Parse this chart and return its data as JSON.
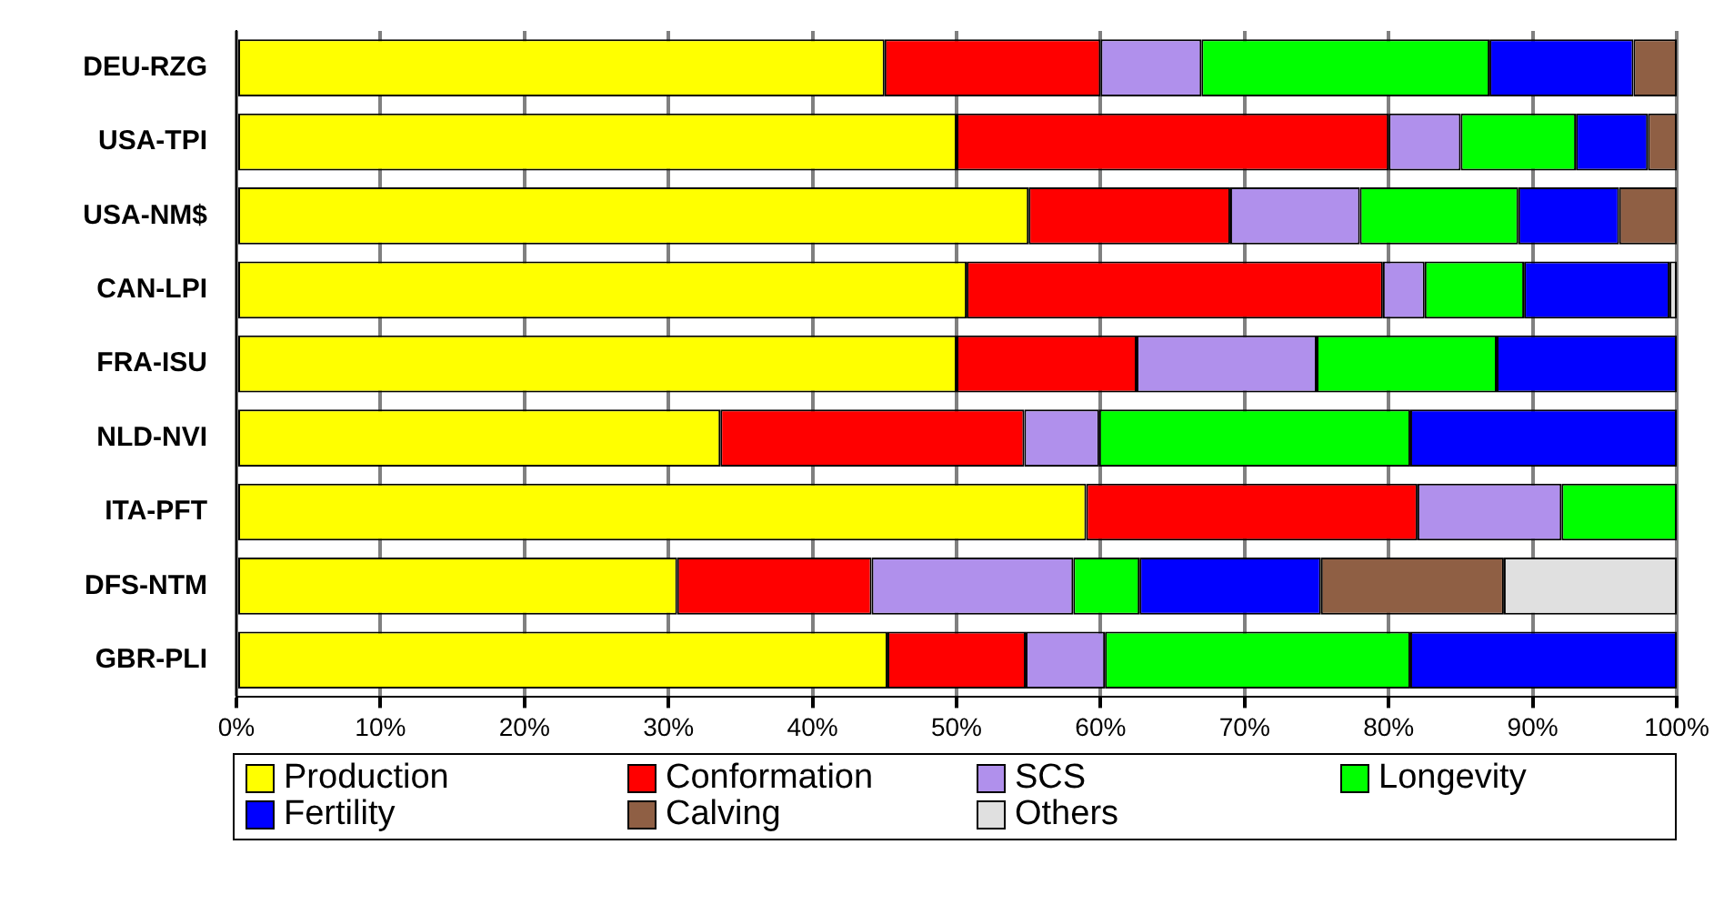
{
  "chart_data": {
    "type": "bar",
    "orientation": "horizontal",
    "stacked": true,
    "categories": [
      "DEU-RZG",
      "USA-TPI",
      "USA-NM$",
      "CAN-LPI",
      "FRA-ISU",
      "NLD-NVI",
      "ITA-PFT",
      "DFS-NTM",
      "GBR-PLI"
    ],
    "series": [
      {
        "name": "Production",
        "color": "#ffff00",
        "values": [
          45,
          50,
          55,
          50.7,
          50,
          33.6,
          59,
          30.6,
          45.2
        ]
      },
      {
        "name": "Conformation",
        "color": "#ff0000",
        "values": [
          15,
          30,
          14,
          28.9,
          12.5,
          21.1,
          23,
          13.5,
          9.6
        ]
      },
      {
        "name": "SCS",
        "color": "#b090ec",
        "values": [
          7,
          5,
          9,
          2.9,
          12.5,
          5.2,
          10,
          14,
          5.5
        ]
      },
      {
        "name": "Longevity",
        "color": "#00ff00",
        "values": [
          20,
          8,
          11,
          6.9,
          12.5,
          21.6,
          8,
          4.6,
          21.2
        ]
      },
      {
        "name": "Fertility",
        "color": "#0000ff",
        "values": [
          10,
          5,
          7,
          10.1,
          12.5,
          18.5,
          null,
          12.6,
          18.5
        ]
      },
      {
        "name": "Calving",
        "color": "#8f5f44",
        "values": [
          3,
          2,
          4,
          null,
          null,
          null,
          null,
          12.7,
          null
        ]
      },
      {
        "name": "Others",
        "color": "#e0e0e0",
        "values": [
          null,
          null,
          null,
          0.5,
          null,
          null,
          null,
          12,
          null
        ]
      }
    ],
    "xlim": [
      0,
      100
    ],
    "xticks": [
      {
        "value": 0,
        "label": "0%"
      },
      {
        "value": 10,
        "label": "10%"
      },
      {
        "value": 20,
        "label": "20%"
      },
      {
        "value": 30,
        "label": "30%"
      },
      {
        "value": 40,
        "label": "40%"
      },
      {
        "value": 50,
        "label": "50%"
      },
      {
        "value": 60,
        "label": "60%"
      },
      {
        "value": 70,
        "label": "70%"
      },
      {
        "value": 80,
        "label": "80%"
      },
      {
        "value": 90,
        "label": "90%"
      },
      {
        "value": 100,
        "label": "100%"
      }
    ],
    "grid": "x",
    "legend": "bottom"
  }
}
